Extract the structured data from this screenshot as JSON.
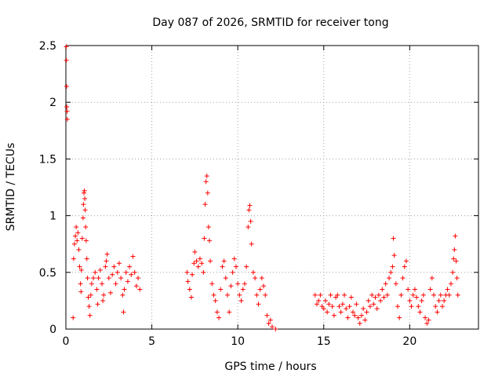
{
  "chart_data": {
    "type": "scatter",
    "title": "Day 087 of 2026, SRMTID for receiver tong",
    "xlabel": "GPS time / hours",
    "ylabel": "SRMTID / TECUs",
    "xlim": [
      0,
      24
    ],
    "ylim": [
      0,
      2.5
    ],
    "x_ticks": [
      0,
      5,
      10,
      15,
      20
    ],
    "y_ticks": [
      0,
      0.5,
      1,
      1.5,
      2,
      2.5
    ],
    "x_tick_labels": [
      "0",
      "5",
      "10",
      "15",
      "20"
    ],
    "y_tick_labels": [
      "0",
      "0.5",
      "1",
      "1.5",
      "2",
      "2.5"
    ],
    "grid": true,
    "marker": "+",
    "series": [
      {
        "name": "SRMTID",
        "color": "#ff0000",
        "points": [
          [
            0.02,
            2.49
          ],
          [
            0.03,
            2.37
          ],
          [
            0.04,
            2.14
          ],
          [
            0.05,
            1.96
          ],
          [
            0.07,
            1.92
          ],
          [
            0.08,
            1.85
          ],
          [
            0.42,
            0.1
          ],
          [
            0.45,
            0.62
          ],
          [
            0.5,
            0.75
          ],
          [
            0.55,
            0.82
          ],
          [
            0.6,
            0.9
          ],
          [
            0.65,
            0.78
          ],
          [
            0.7,
            0.85
          ],
          [
            0.75,
            0.7
          ],
          [
            0.8,
            0.55
          ],
          [
            0.85,
            0.4
          ],
          [
            0.88,
            0.33
          ],
          [
            0.9,
            0.52
          ],
          [
            0.95,
            0.8
          ],
          [
            1.0,
            0.98
          ],
          [
            1.02,
            1.1
          ],
          [
            1.05,
            1.2
          ],
          [
            1.08,
            1.22
          ],
          [
            1.1,
            1.15
          ],
          [
            1.12,
            1.05
          ],
          [
            1.15,
            0.9
          ],
          [
            1.18,
            0.78
          ],
          [
            1.22,
            0.62
          ],
          [
            1.26,
            0.45
          ],
          [
            1.3,
            0.28
          ],
          [
            1.35,
            0.2
          ],
          [
            1.4,
            0.12
          ],
          [
            1.45,
            0.3
          ],
          [
            1.5,
            0.4
          ],
          [
            1.6,
            0.45
          ],
          [
            1.7,
            0.5
          ],
          [
            1.8,
            0.35
          ],
          [
            1.85,
            0.22
          ],
          [
            1.9,
            0.45
          ],
          [
            2.0,
            0.52
          ],
          [
            2.1,
            0.4
          ],
          [
            2.15,
            0.25
          ],
          [
            2.2,
            0.3
          ],
          [
            2.3,
            0.55
          ],
          [
            2.35,
            0.6
          ],
          [
            2.4,
            0.66
          ],
          [
            2.5,
            0.45
          ],
          [
            2.6,
            0.32
          ],
          [
            2.7,
            0.48
          ],
          [
            2.8,
            0.55
          ],
          [
            2.9,
            0.4
          ],
          [
            3.0,
            0.5
          ],
          [
            3.1,
            0.58
          ],
          [
            3.2,
            0.45
          ],
          [
            3.3,
            0.3
          ],
          [
            3.35,
            0.15
          ],
          [
            3.4,
            0.35
          ],
          [
            3.5,
            0.5
          ],
          [
            3.6,
            0.42
          ],
          [
            3.7,
            0.55
          ],
          [
            3.8,
            0.48
          ],
          [
            3.9,
            0.64
          ],
          [
            4.0,
            0.5
          ],
          [
            4.1,
            0.38
          ],
          [
            4.2,
            0.45
          ],
          [
            4.3,
            0.35
          ],
          [
            7.05,
            0.5
          ],
          [
            7.1,
            0.42
          ],
          [
            7.2,
            0.35
          ],
          [
            7.3,
            0.28
          ],
          [
            7.35,
            0.48
          ],
          [
            7.45,
            0.58
          ],
          [
            7.5,
            0.68
          ],
          [
            7.6,
            0.6
          ],
          [
            7.7,
            0.55
          ],
          [
            7.8,
            0.62
          ],
          [
            7.9,
            0.58
          ],
          [
            8.0,
            0.5
          ],
          [
            8.05,
            0.8
          ],
          [
            8.1,
            1.1
          ],
          [
            8.15,
            1.3
          ],
          [
            8.2,
            1.35
          ],
          [
            8.25,
            1.2
          ],
          [
            8.3,
            0.9
          ],
          [
            8.35,
            0.78
          ],
          [
            8.4,
            0.6
          ],
          [
            8.5,
            0.4
          ],
          [
            8.6,
            0.3
          ],
          [
            8.7,
            0.25
          ],
          [
            8.8,
            0.15
          ],
          [
            8.9,
            0.1
          ],
          [
            9.0,
            0.35
          ],
          [
            9.1,
            0.55
          ],
          [
            9.2,
            0.6
          ],
          [
            9.3,
            0.45
          ],
          [
            9.4,
            0.3
          ],
          [
            9.5,
            0.15
          ],
          [
            9.6,
            0.38
          ],
          [
            9.7,
            0.5
          ],
          [
            9.8,
            0.62
          ],
          [
            9.9,
            0.55
          ],
          [
            10.0,
            0.4
          ],
          [
            10.1,
            0.3
          ],
          [
            10.2,
            0.25
          ],
          [
            10.3,
            0.35
          ],
          [
            10.4,
            0.4
          ],
          [
            10.5,
            0.55
          ],
          [
            10.6,
            0.9
          ],
          [
            10.65,
            1.05
          ],
          [
            10.7,
            1.09
          ],
          [
            10.75,
            0.95
          ],
          [
            10.8,
            0.75
          ],
          [
            10.9,
            0.5
          ],
          [
            11.0,
            0.45
          ],
          [
            11.1,
            0.3
          ],
          [
            11.2,
            0.22
          ],
          [
            11.3,
            0.35
          ],
          [
            11.4,
            0.45
          ],
          [
            11.5,
            0.38
          ],
          [
            11.6,
            0.3
          ],
          [
            11.7,
            0.12
          ],
          [
            11.8,
            0.05
          ],
          [
            11.9,
            0.08
          ],
          [
            12.0,
            0.02
          ],
          [
            12.2,
            0.0
          ],
          [
            14.5,
            0.3
          ],
          [
            14.6,
            0.22
          ],
          [
            14.7,
            0.25
          ],
          [
            14.8,
            0.3
          ],
          [
            14.9,
            0.2
          ],
          [
            15.0,
            0.18
          ],
          [
            15.1,
            0.25
          ],
          [
            15.2,
            0.15
          ],
          [
            15.3,
            0.22
          ],
          [
            15.4,
            0.3
          ],
          [
            15.5,
            0.2
          ],
          [
            15.6,
            0.12
          ],
          [
            15.7,
            0.28
          ],
          [
            15.8,
            0.3
          ],
          [
            15.9,
            0.2
          ],
          [
            16.0,
            0.15
          ],
          [
            16.1,
            0.22
          ],
          [
            16.2,
            0.3
          ],
          [
            16.3,
            0.18
          ],
          [
            16.4,
            0.1
          ],
          [
            16.5,
            0.2
          ],
          [
            16.6,
            0.28
          ],
          [
            16.7,
            0.15
          ],
          [
            16.8,
            0.12
          ],
          [
            16.9,
            0.22
          ],
          [
            17.0,
            0.1
          ],
          [
            17.1,
            0.05
          ],
          [
            17.2,
            0.12
          ],
          [
            17.3,
            0.18
          ],
          [
            17.4,
            0.08
          ],
          [
            17.5,
            0.15
          ],
          [
            17.6,
            0.25
          ],
          [
            17.7,
            0.2
          ],
          [
            17.8,
            0.3
          ],
          [
            17.9,
            0.22
          ],
          [
            18.0,
            0.28
          ],
          [
            18.1,
            0.18
          ],
          [
            18.2,
            0.3
          ],
          [
            18.3,
            0.25
          ],
          [
            18.4,
            0.35
          ],
          [
            18.5,
            0.28
          ],
          [
            18.6,
            0.4
          ],
          [
            18.7,
            0.3
          ],
          [
            18.8,
            0.45
          ],
          [
            18.9,
            0.5
          ],
          [
            19.0,
            0.55
          ],
          [
            19.05,
            0.8
          ],
          [
            19.1,
            0.65
          ],
          [
            19.2,
            0.4
          ],
          [
            19.3,
            0.2
          ],
          [
            19.4,
            0.1
          ],
          [
            19.5,
            0.3
          ],
          [
            19.6,
            0.45
          ],
          [
            19.7,
            0.55
          ],
          [
            19.8,
            0.6
          ],
          [
            19.9,
            0.35
          ],
          [
            20.0,
            0.25
          ],
          [
            20.1,
            0.2
          ],
          [
            20.2,
            0.3
          ],
          [
            20.3,
            0.35
          ],
          [
            20.4,
            0.28
          ],
          [
            20.5,
            0.2
          ],
          [
            20.6,
            0.15
          ],
          [
            20.7,
            0.25
          ],
          [
            20.8,
            0.3
          ],
          [
            20.9,
            0.1
          ],
          [
            21.0,
            0.05
          ],
          [
            21.1,
            0.08
          ],
          [
            21.2,
            0.35
          ],
          [
            21.3,
            0.45
          ],
          [
            21.4,
            0.3
          ],
          [
            21.5,
            0.2
          ],
          [
            21.6,
            0.15
          ],
          [
            21.7,
            0.25
          ],
          [
            21.8,
            0.3
          ],
          [
            21.9,
            0.2
          ],
          [
            22.0,
            0.25
          ],
          [
            22.1,
            0.3
          ],
          [
            22.2,
            0.35
          ],
          [
            22.3,
            0.3
          ],
          [
            22.4,
            0.4
          ],
          [
            22.5,
            0.5
          ],
          [
            22.55,
            0.62
          ],
          [
            22.6,
            0.7
          ],
          [
            22.65,
            0.82
          ],
          [
            22.7,
            0.6
          ],
          [
            22.75,
            0.45
          ],
          [
            22.8,
            0.3
          ]
        ]
      }
    ]
  }
}
